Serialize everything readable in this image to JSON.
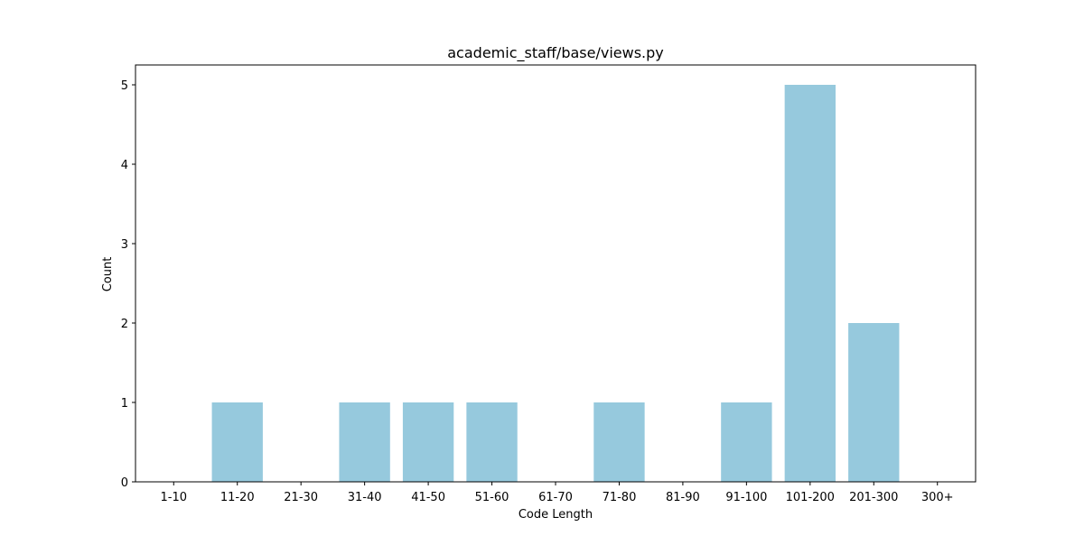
{
  "chart_data": {
    "type": "bar",
    "title": "academic_staff/base/views.py",
    "xlabel": "Code Length",
    "ylabel": "Count",
    "categories": [
      "1-10",
      "11-20",
      "21-30",
      "31-40",
      "41-50",
      "51-60",
      "61-70",
      "71-80",
      "81-90",
      "91-100",
      "101-200",
      "201-300",
      "300+"
    ],
    "values": [
      0,
      1,
      0,
      1,
      1,
      1,
      0,
      1,
      0,
      1,
      5,
      2,
      0
    ],
    "ylim": [
      0,
      5.25
    ],
    "yticks": [
      0,
      1,
      2,
      3,
      4,
      5
    ],
    "grid": false,
    "legend": "none",
    "bar_color": "#96c9dd"
  }
}
